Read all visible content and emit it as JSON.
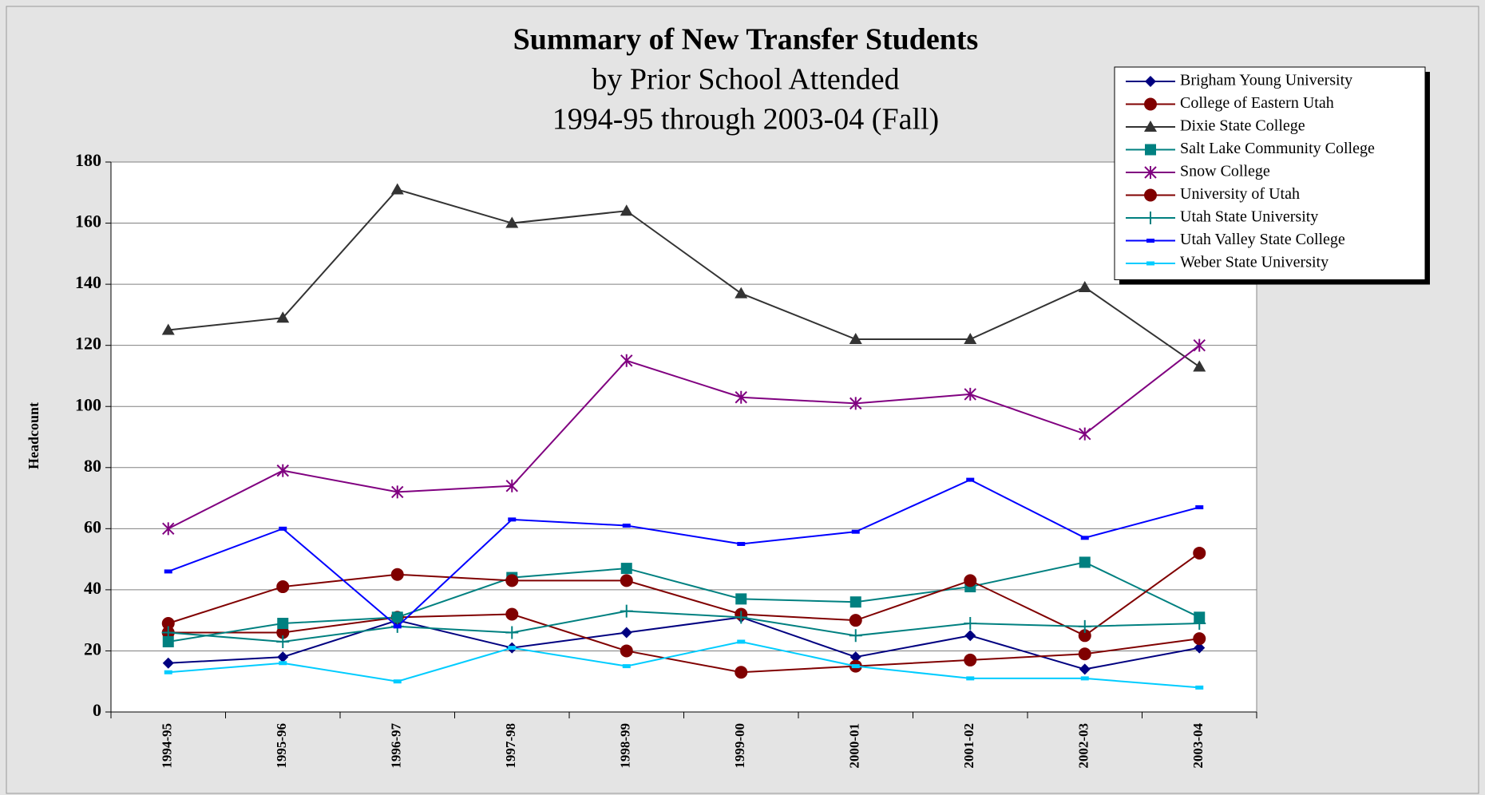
{
  "chart_data": {
    "type": "line",
    "title": "Summary of New Transfer Students",
    "subtitle": [
      "by Prior School Attended",
      "1994-95 through 2003-04 (Fall)"
    ],
    "y_label": "Headcount",
    "categories": [
      "1994-95",
      "1995-96",
      "1996-97",
      "1997-98",
      "1998-99",
      "1999-00",
      "2000-01",
      "2001-02",
      "2002-03",
      "2003-04"
    ],
    "ylim": [
      0,
      180
    ],
    "yticks": [
      0,
      20,
      40,
      60,
      80,
      100,
      120,
      140,
      160,
      180
    ],
    "grid": true,
    "legend": "upper right",
    "series": [
      {
        "name": "Brigham Young University",
        "color": "#000080",
        "marker": "diamond",
        "values": [
          16,
          18,
          30,
          21,
          26,
          31,
          18,
          25,
          14,
          21
        ]
      },
      {
        "name": "College of Eastern Utah",
        "color": "#800000",
        "marker": "circle",
        "values": [
          26,
          26,
          31,
          32,
          20,
          13,
          15,
          17,
          19,
          24
        ]
      },
      {
        "name": "Dixie State College",
        "color": "#333333",
        "marker": "triangle",
        "values": [
          125,
          129,
          171,
          160,
          164,
          137,
          122,
          122,
          139,
          113
        ]
      },
      {
        "name": "Salt Lake Community College",
        "color": "#008080",
        "marker": "square",
        "values": [
          23,
          29,
          31,
          44,
          47,
          37,
          36,
          41,
          49,
          31
        ]
      },
      {
        "name": "Snow College",
        "color": "#800080",
        "marker": "star",
        "values": [
          60,
          79,
          72,
          74,
          115,
          103,
          101,
          104,
          91,
          120
        ]
      },
      {
        "name": "University of Utah",
        "color": "#800000",
        "marker": "circle",
        "values": [
          29,
          41,
          45,
          43,
          43,
          32,
          30,
          43,
          25,
          52
        ]
      },
      {
        "name": "Utah State University",
        "color": "#008080",
        "marker": "plus",
        "values": [
          26,
          23,
          28,
          26,
          33,
          31,
          25,
          29,
          28,
          29
        ]
      },
      {
        "name": "Utah Valley State College",
        "color": "#0000ff",
        "marker": "dash",
        "values": [
          46,
          60,
          28,
          63,
          61,
          55,
          59,
          76,
          57,
          67
        ]
      },
      {
        "name": "Weber State University",
        "color": "#00ccff",
        "marker": "dash",
        "values": [
          13,
          16,
          10,
          21,
          15,
          23,
          15,
          11,
          11,
          8
        ]
      }
    ]
  }
}
